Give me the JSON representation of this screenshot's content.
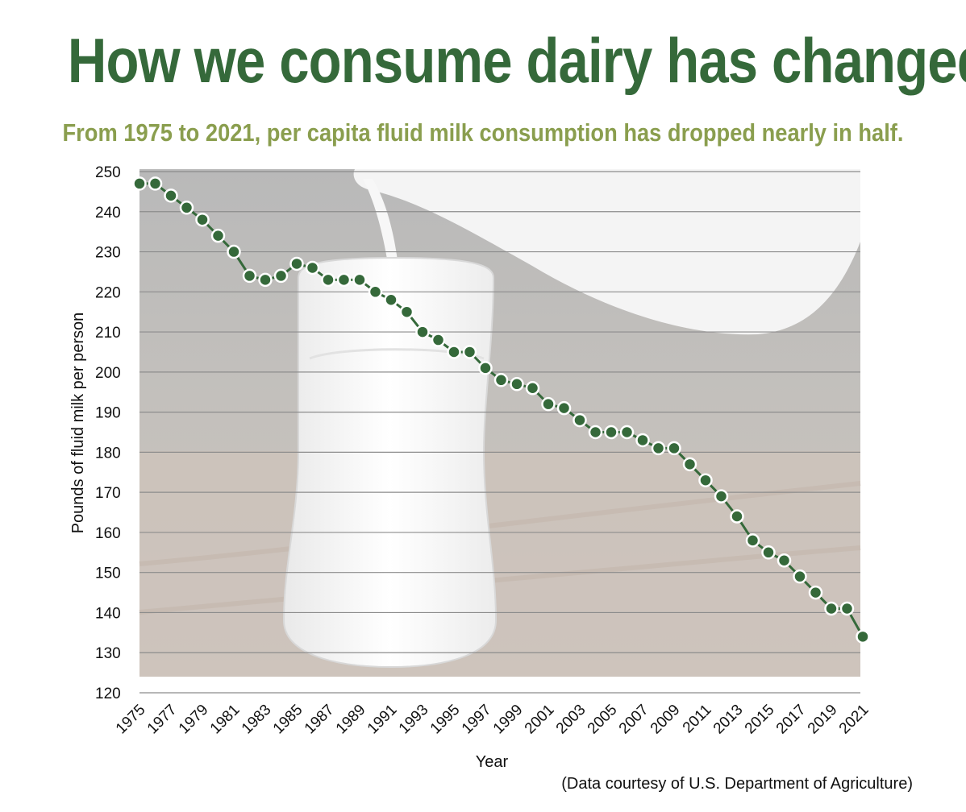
{
  "title": "How we consume dairy has changed",
  "subtitle": "From 1975 to 2021, per capita fluid milk consumption has dropped nearly in half.",
  "source": "(Data courtesy of U.S. Department of Agriculture)",
  "colors": {
    "title": "#35693a",
    "subtitle": "#8a9e4e",
    "line": "#35693a",
    "marker_fill": "#35693a",
    "marker_stroke": "#ffffff"
  },
  "background_image": "milk-pouring-into-glass-photo",
  "chart_data": {
    "type": "line",
    "title": "How we consume dairy has changed",
    "subtitle": "From 1975 to 2021, per capita fluid milk consumption has dropped nearly in half.",
    "xlabel": "Year",
    "ylabel": "Pounds of fluid milk per person",
    "ylim": [
      120,
      250
    ],
    "yticks": [
      120,
      130,
      140,
      150,
      160,
      170,
      180,
      190,
      200,
      210,
      220,
      230,
      240,
      250
    ],
    "xticks": [
      1975,
      1977,
      1979,
      1981,
      1983,
      1985,
      1987,
      1989,
      1991,
      1993,
      1995,
      1997,
      1999,
      2001,
      2003,
      2005,
      2007,
      2009,
      2011,
      2013,
      2015,
      2017,
      2019,
      2021
    ],
    "grid": "horizontal",
    "x": [
      1975,
      1976,
      1977,
      1978,
      1979,
      1980,
      1981,
      1982,
      1983,
      1984,
      1985,
      1986,
      1987,
      1988,
      1989,
      1990,
      1991,
      1992,
      1993,
      1994,
      1995,
      1996,
      1997,
      1998,
      1999,
      2000,
      2001,
      2002,
      2003,
      2004,
      2005,
      2006,
      2007,
      2008,
      2009,
      2010,
      2011,
      2012,
      2013,
      2014,
      2015,
      2016,
      2017,
      2018,
      2019,
      2020,
      2021
    ],
    "y": [
      247,
      247,
      244,
      241,
      238,
      234,
      230,
      224,
      223,
      224,
      227,
      226,
      223,
      223,
      223,
      220,
      218,
      215,
      210,
      208,
      205,
      205,
      201,
      198,
      197,
      196,
      192,
      191,
      188,
      185,
      185,
      185,
      183,
      181,
      181,
      177,
      173,
      169,
      164,
      158,
      155,
      153,
      149,
      145,
      141,
      141,
      134
    ]
  }
}
